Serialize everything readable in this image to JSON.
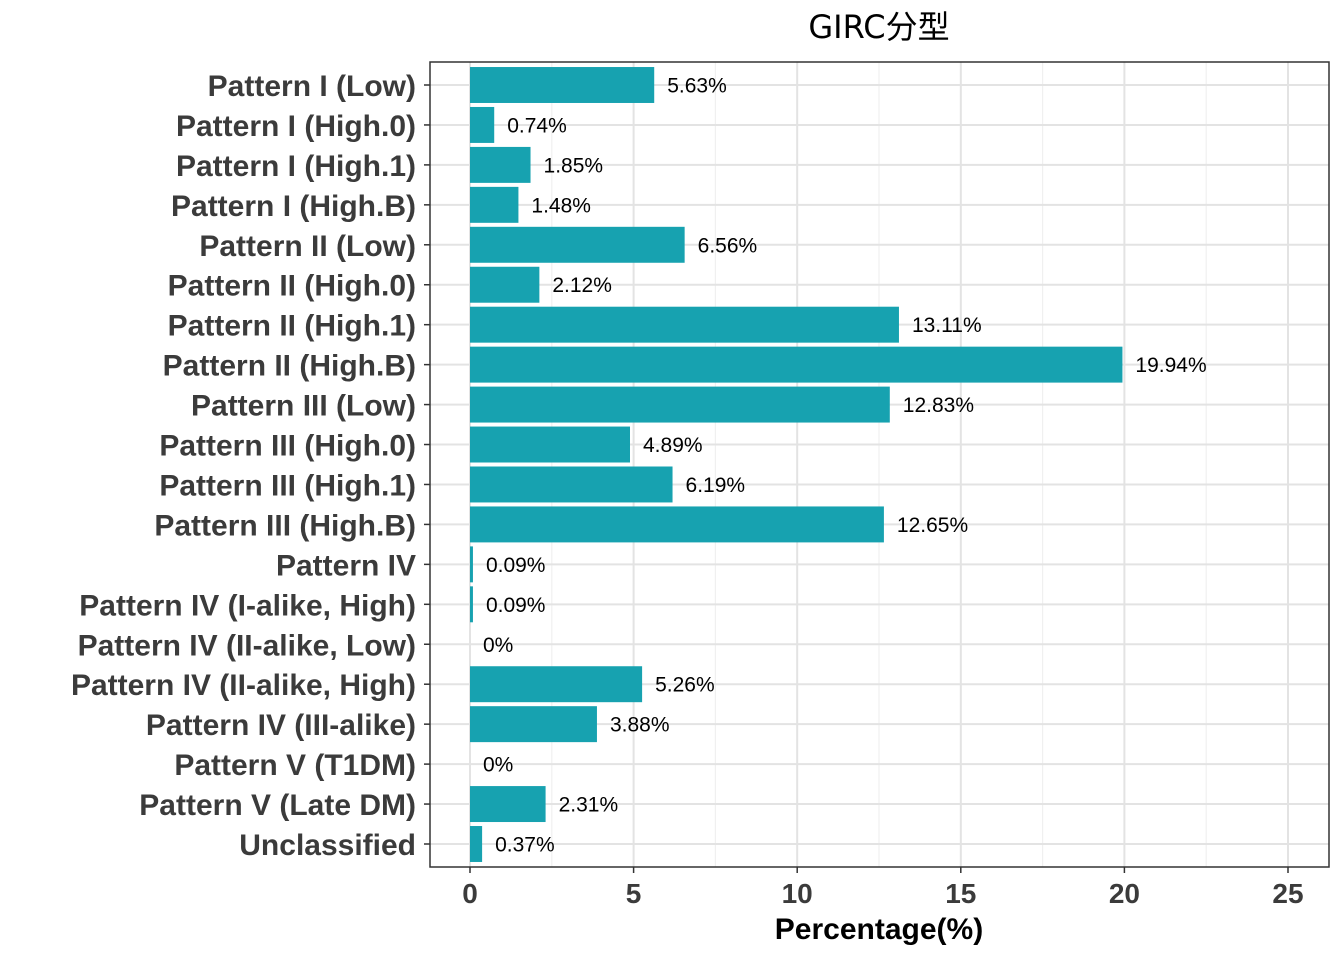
{
  "chart_data": {
    "type": "bar",
    "orientation": "horizontal",
    "title": "GIRC分型",
    "xlabel": "Percentage(%)",
    "ylabel": "",
    "xlim": [
      0,
      25
    ],
    "xticks": [
      0,
      5,
      10,
      15,
      20,
      25
    ],
    "xtick_labels": [
      "0",
      "5",
      "10",
      "15",
      "20",
      "25"
    ],
    "grid": true,
    "bar_color": "#17A2B0",
    "categories": [
      "Pattern I (Low)",
      "Pattern I (High.0)",
      "Pattern I (High.1)",
      "Pattern I (High.B)",
      "Pattern II (Low)",
      "Pattern II (High.0)",
      "Pattern II (High.1)",
      "Pattern II (High.B)",
      "Pattern III (Low)",
      "Pattern III (High.0)",
      "Pattern III (High.1)",
      "Pattern III (High.B)",
      "Pattern IV",
      "Pattern IV (I-alike, High)",
      "Pattern IV (II-alike, Low)",
      "Pattern IV (II-alike, High)",
      "Pattern IV (III-alike)",
      "Pattern V (T1DM)",
      "Pattern V (Late DM)",
      "Unclassified"
    ],
    "values": [
      5.63,
      0.74,
      1.85,
      1.48,
      6.56,
      2.12,
      13.11,
      19.94,
      12.83,
      4.89,
      6.19,
      12.65,
      0.09,
      0.09,
      0,
      5.26,
      3.88,
      0,
      2.31,
      0.37
    ],
    "value_labels": [
      "5.63%",
      "0.74%",
      "1.85%",
      "1.48%",
      "6.56%",
      "2.12%",
      "13.11%",
      "19.94%",
      "12.83%",
      "4.89%",
      "6.19%",
      "12.65%",
      "0.09%",
      "0.09%",
      "0%",
      "5.26%",
      "3.88%",
      "0%",
      "2.31%",
      "0.37%"
    ]
  }
}
